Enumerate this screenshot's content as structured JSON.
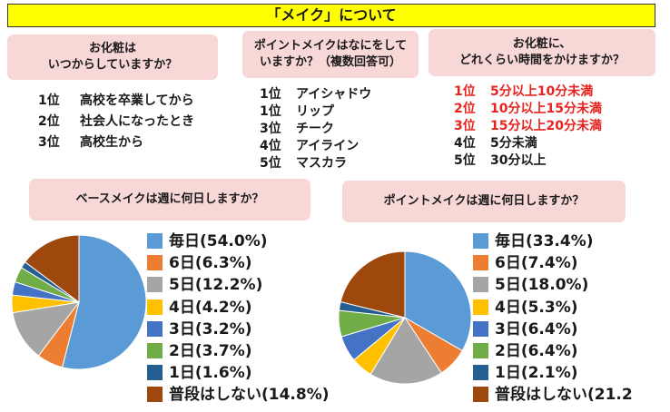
{
  "title": "「メイク」について",
  "q1": {
    "question_lines": [
      "お化粧は",
      "いつからしていますか？"
    ],
    "answers": [
      {
        "rank": "1位",
        "text": "高校を卒業してから"
      },
      {
        "rank": "2位",
        "text": "社会人になったとき"
      },
      {
        "rank": "3位",
        "text": "高校生から"
      }
    ]
  },
  "q2": {
    "question_lines": [
      "ポイントメイクはなにをして",
      "いますか？（複数回答可）"
    ],
    "answers": [
      {
        "rank": "1位",
        "text": "アイシャドウ"
      },
      {
        "rank": "1位",
        "text": "リップ"
      },
      {
        "rank": "3位",
        "text": "チーク"
      },
      {
        "rank": "4位",
        "text": "アイライン"
      },
      {
        "rank": "5位",
        "text": "マスカラ"
      }
    ]
  },
  "q3": {
    "question_lines": [
      "お化粧に、",
      "どれくらい時間をかけますか？"
    ],
    "answers": [
      {
        "rank": "1位",
        "text": "5分以上10分未満",
        "highlight": true
      },
      {
        "rank": "2位",
        "text": "10分以上15分未満",
        "highlight": true
      },
      {
        "rank": "3位",
        "text": "15分以上20分未満",
        "highlight": true
      },
      {
        "rank": "4位",
        "text": "5分未満",
        "highlight": false
      },
      {
        "rank": "5位",
        "text": "30分以上",
        "highlight": false
      }
    ],
    "highlight_color": "#e8231f"
  },
  "chart_data": [
    {
      "type": "pie",
      "title": "ベースメイクは週に何日しますか？",
      "categories": [
        "毎日",
        "6日",
        "5日",
        "4日",
        "3日",
        "2日",
        "1日",
        "普段はしない"
      ],
      "values": [
        54.0,
        6.3,
        12.2,
        4.2,
        3.2,
        3.7,
        1.6,
        14.8
      ],
      "legend_labels": [
        "毎日(54.0%)",
        "6日(6.3%)",
        "5日(12.2%)",
        "4日(4.2%)",
        "3日(3.2%)",
        "2日(3.7%)",
        "1日(1.6%)",
        "普段はしない(14.8%)"
      ],
      "colors": [
        "#5b9bd5",
        "#ed7d31",
        "#a5a5a5",
        "#ffc000",
        "#4472c4",
        "#70ad47",
        "#255e91",
        "#9e480e"
      ],
      "legend_position": "right"
    },
    {
      "type": "pie",
      "title": "ポイントメイクは週に何日しますか？",
      "categories": [
        "毎日",
        "6日",
        "5日",
        "4日",
        "3日",
        "2日",
        "1日",
        "普段はしない"
      ],
      "values": [
        33.4,
        7.4,
        18.0,
        5.3,
        6.4,
        6.4,
        2.1,
        21.2
      ],
      "legend_labels": [
        "毎日(33.4%)",
        "6日(7.4%)",
        "5日(18.0%)",
        "4日(5.3%)",
        "3日(6.4%)",
        "2日(6.4%)",
        "1日(2.1%)",
        "普段はしない(21.2"
      ],
      "colors": [
        "#5b9bd5",
        "#ed7d31",
        "#a5a5a5",
        "#ffc000",
        "#4472c4",
        "#70ad47",
        "#255e91",
        "#9e480e"
      ],
      "legend_position": "right"
    }
  ]
}
